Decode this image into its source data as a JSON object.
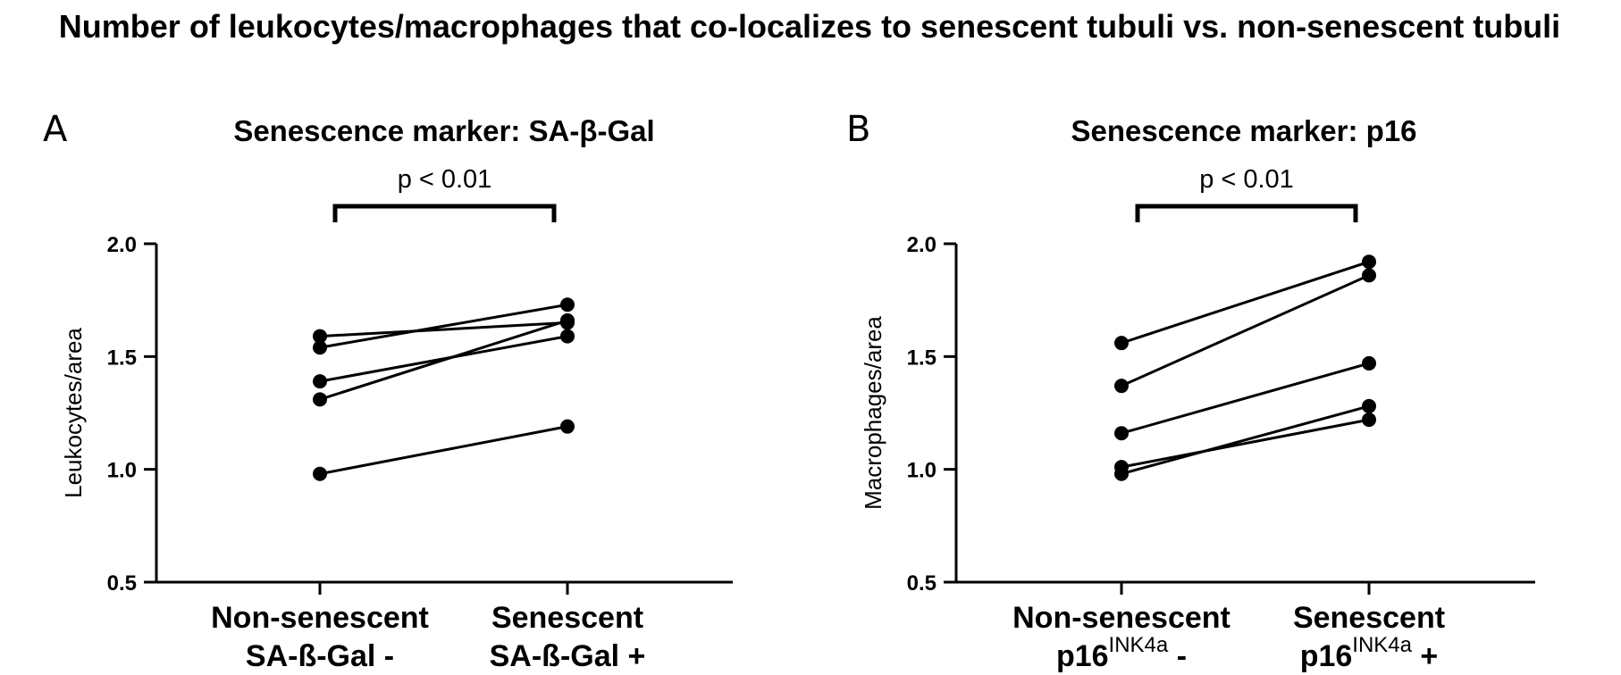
{
  "main_title": "Number of leukocytes/macrophages that co-localizes to senescent tubuli vs. non-senescent tubuli",
  "chart_data": [
    {
      "type": "line",
      "panel": "A",
      "title": "Senescence marker: SA-β-Gal",
      "ylabel": "Leukocytes/area",
      "xlabel": "",
      "ylim": [
        0.5,
        2.0
      ],
      "yticks": [
        "0.5",
        "1.0",
        "1.5",
        "2.0"
      ],
      "categories": [
        {
          "line1": "Non-senescent",
          "line2": "SA-ß-Gal -"
        },
        {
          "line1": "Senescent",
          "line2": "SA-ß-Gal +"
        }
      ],
      "significance": "p < 0.01",
      "series": [
        {
          "values": [
            1.59,
            1.65
          ]
        },
        {
          "values": [
            1.54,
            1.73
          ]
        },
        {
          "values": [
            1.39,
            1.59
          ]
        },
        {
          "values": [
            1.31,
            1.66
          ]
        },
        {
          "values": [
            0.98,
            1.19
          ]
        }
      ],
      "grid": false,
      "marker_color": "#000000"
    },
    {
      "type": "line",
      "panel": "B",
      "title": "Senescence marker: p16",
      "ylabel": "Macrophages/area",
      "xlabel": "",
      "ylim": [
        0.5,
        2.0
      ],
      "yticks": [
        "0.5",
        "1.0",
        "1.5",
        "2.0"
      ],
      "categories": [
        {
          "line1": "Non-senescent",
          "line2": "p16",
          "sup": "INK4a",
          "suffix": " -"
        },
        {
          "line1": "Senescent",
          "line2": "p16",
          "sup": "INK4a",
          "suffix": " +"
        }
      ],
      "significance": "p < 0.01",
      "series": [
        {
          "values": [
            1.56,
            1.92
          ]
        },
        {
          "values": [
            1.37,
            1.86
          ]
        },
        {
          "values": [
            1.16,
            1.47
          ]
        },
        {
          "values": [
            1.01,
            1.22
          ]
        },
        {
          "values": [
            0.98,
            1.28
          ]
        }
      ],
      "grid": false,
      "marker_color": "#000000"
    }
  ]
}
